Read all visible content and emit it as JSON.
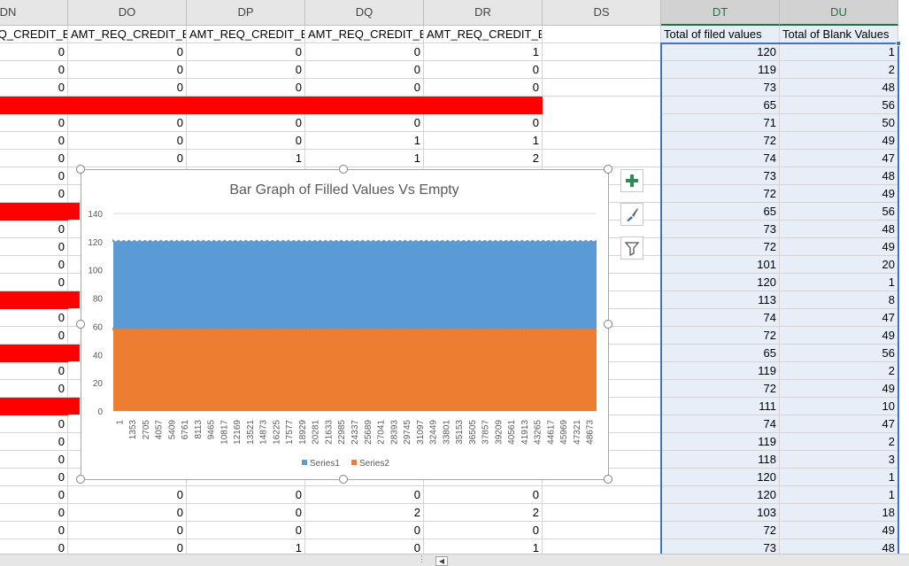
{
  "columns": [
    {
      "letter": "DN",
      "header": "AMT_REQ_CREDIT_BUREAU_HOUR"
    },
    {
      "letter": "DO",
      "header": "AMT_REQ_CREDIT_BUREAU_DAY"
    },
    {
      "letter": "DP",
      "header": "AMT_REQ_CREDIT_BUREAU_WEEK"
    },
    {
      "letter": "DQ",
      "header": "AMT_REQ_CREDIT_BUREAU_MON"
    },
    {
      "letter": "DR",
      "header": "AMT_REQ_CREDIT_BUREAU_YEAR"
    },
    {
      "letter": "DS",
      "header": ""
    },
    {
      "letter": "DT",
      "header": "Total of filed values"
    },
    {
      "letter": "DU",
      "header": "Total of Blank Values"
    }
  ],
  "rows": [
    {
      "dn": "0",
      "do": "0",
      "dp": "0",
      "dq": "0",
      "dr": "1",
      "dt": "120",
      "du": "1"
    },
    {
      "dn": "0",
      "do": "0",
      "dp": "0",
      "dq": "0",
      "dr": "0",
      "dt": "119",
      "du": "2"
    },
    {
      "dn": "0",
      "do": "0",
      "dp": "0",
      "dq": "0",
      "dr": "0",
      "dt": "73",
      "du": "48"
    },
    {
      "red": "wide",
      "dt": "65",
      "du": "56"
    },
    {
      "dn": "0",
      "do": "0",
      "dp": "0",
      "dq": "0",
      "dr": "0",
      "dt": "71",
      "du": "50"
    },
    {
      "dn": "0",
      "do": "0",
      "dp": "0",
      "dq": "1",
      "dr": "1",
      "dt": "72",
      "du": "49"
    },
    {
      "dn": "0",
      "do": "0",
      "dp": "1",
      "dq": "1",
      "dr": "2",
      "dt": "74",
      "du": "47"
    },
    {
      "dn": "0",
      "dt": "73",
      "du": "48"
    },
    {
      "dn": "0",
      "dt": "72",
      "du": "49"
    },
    {
      "red": "narrow",
      "dt": "65",
      "du": "56"
    },
    {
      "dn": "0",
      "dt": "73",
      "du": "48"
    },
    {
      "dn": "0",
      "dt": "72",
      "du": "49"
    },
    {
      "dn": "0",
      "dt": "101",
      "du": "20"
    },
    {
      "dn": "0",
      "dt": "120",
      "du": "1"
    },
    {
      "red": "narrow",
      "dt": "113",
      "du": "8"
    },
    {
      "dn": "0",
      "dt": "74",
      "du": "47"
    },
    {
      "dn": "0",
      "dt": "72",
      "du": "49"
    },
    {
      "red": "narrow",
      "dt": "65",
      "du": "56"
    },
    {
      "dn": "0",
      "dt": "119",
      "du": "2"
    },
    {
      "dn": "0",
      "dt": "72",
      "du": "49"
    },
    {
      "red": "narrow",
      "dt": "111",
      "du": "10"
    },
    {
      "dn": "0",
      "dt": "74",
      "du": "47"
    },
    {
      "dn": "0",
      "dt": "119",
      "du": "2"
    },
    {
      "dn": "0",
      "dt": "118",
      "du": "3"
    },
    {
      "dn": "0",
      "dt": "120",
      "du": "1"
    },
    {
      "dn": "0",
      "do": "0",
      "dp": "0",
      "dq": "0",
      "dr": "0",
      "dt": "120",
      "du": "1"
    },
    {
      "dn": "0",
      "do": "0",
      "dp": "0",
      "dq": "2",
      "dr": "2",
      "dt": "103",
      "du": "18"
    },
    {
      "dn": "0",
      "do": "0",
      "dp": "0",
      "dq": "0",
      "dr": "0",
      "dt": "72",
      "du": "49"
    },
    {
      "dn": "0",
      "do": "0",
      "dp": "1",
      "dq": "0",
      "dr": "1",
      "dt": "73",
      "du": "48"
    }
  ],
  "chart_data": {
    "type": "bar",
    "stacked": true,
    "title": "Bar Graph of Filled Values Vs Empty",
    "ylim": [
      0,
      140
    ],
    "yticks": [
      0,
      20,
      40,
      60,
      80,
      100,
      120,
      140
    ],
    "x_tick_labels": [
      "1",
      "1353",
      "2705",
      "4057",
      "5409",
      "6761",
      "8113",
      "9465",
      "10817",
      "12169",
      "13521",
      "14873",
      "16225",
      "17577",
      "18929",
      "20281",
      "21633",
      "22985",
      "24337",
      "25689",
      "27041",
      "28393",
      "29745",
      "31097",
      "32449",
      "33801",
      "35153",
      "36505",
      "37857",
      "39209",
      "40561",
      "41913",
      "43265",
      "44617",
      "45969",
      "47321",
      "48673"
    ],
    "x_count": 49650,
    "series": [
      {
        "name": "Series1",
        "color": "#5b9bd5",
        "approx_values": 63
      },
      {
        "name": "Series2",
        "color": "#ed7d31",
        "approx_values": 57
      }
    ],
    "legend_position": "bottom",
    "gridlines": true
  },
  "chart_tools": {
    "add_element_icon": "plus-icon",
    "style_icon": "paintbrush-icon",
    "filter_icon": "filter-icon"
  },
  "colors": {
    "accent": "#217346",
    "selection": "#4472c4",
    "highlight_red": "#ff0000"
  }
}
